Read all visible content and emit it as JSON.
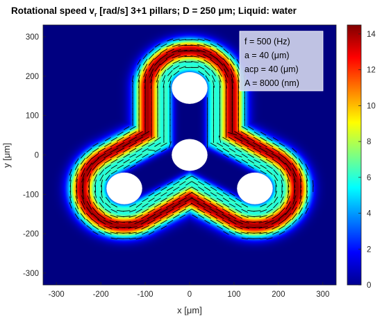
{
  "chart_data": {
    "type": "heatmap",
    "title": "Rotational speed v",
    "title_sub": "r",
    "title_rest": " [rad/s]     3+1 pillars;    D = 250 μm;    Liquid: water",
    "xlabel": "x [μm]",
    "ylabel": "y [μm]",
    "xlim": [
      -330,
      330
    ],
    "ylim": [
      -330,
      330
    ],
    "xticks": [
      -300,
      -200,
      -100,
      0,
      100,
      200,
      300
    ],
    "yticks": [
      -300,
      -200,
      -100,
      0,
      100,
      200,
      300
    ],
    "colorbar": {
      "colormap": "jet",
      "clim": [
        0,
        14.5
      ],
      "ticks": [
        0,
        2,
        4,
        6,
        8,
        10,
        12,
        14
      ]
    },
    "pillars": [
      {
        "x": 0,
        "y": 0,
        "radius": 40
      },
      {
        "x": 0,
        "y": 170,
        "radius": 40
      },
      {
        "x": -147,
        "y": -85,
        "radius": 40
      },
      {
        "x": 147,
        "y": -85,
        "radius": 40
      }
    ],
    "streaming_band": {
      "path_centers": [
        [
          0,
          0
        ],
        [
          0,
          170
        ],
        [
          -147,
          -85
        ],
        [
          147,
          -85
        ]
      ],
      "peak_value": 14,
      "background_value": 0
    },
    "vector_field": {
      "arrows": "black dashes indicating flow direction"
    },
    "annotation_lines": [
      "f = 500 (Hz)",
      "a = 40 (μm)",
      "acp = 40 (μm)",
      "A = 8000 (nm)"
    ],
    "grid": false,
    "legend": "none"
  }
}
